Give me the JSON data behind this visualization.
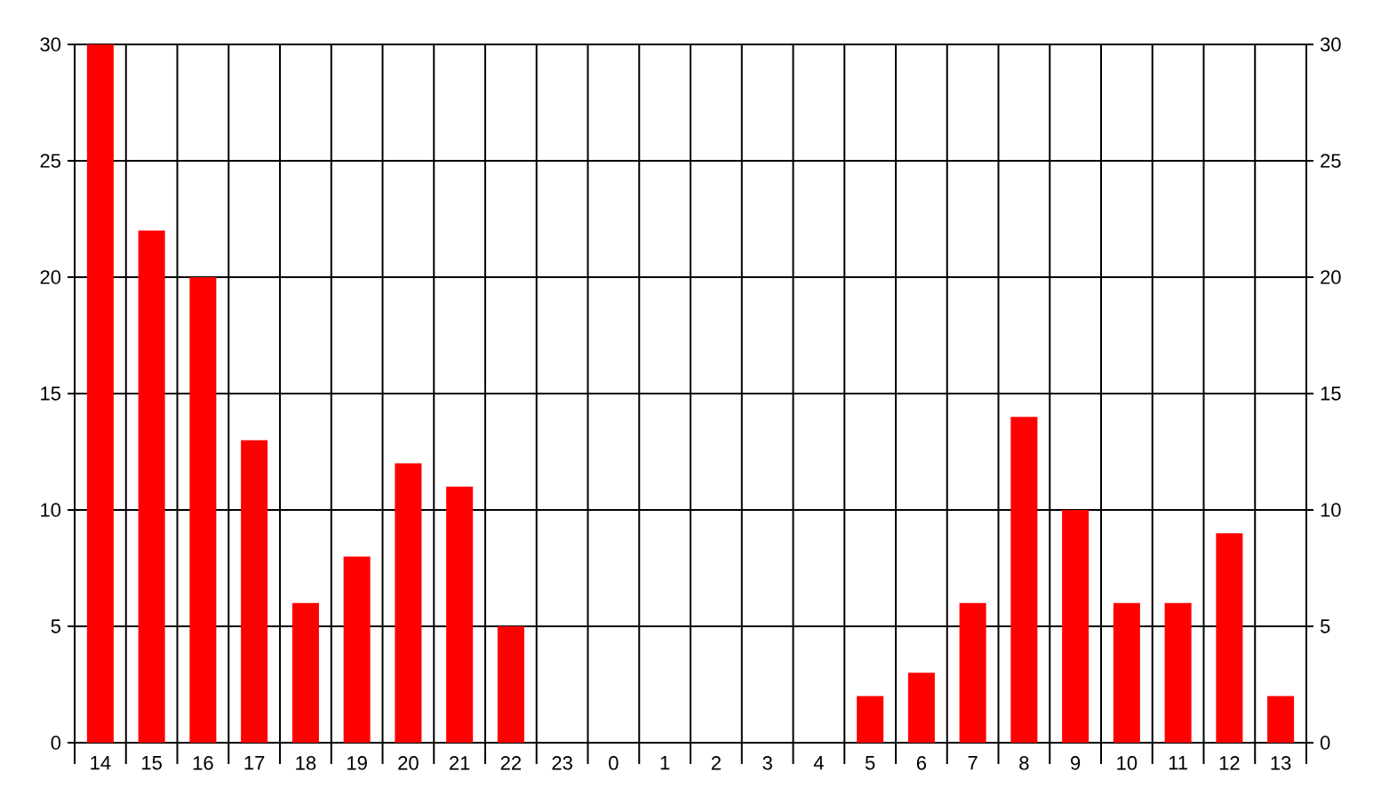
{
  "chart_data": {
    "type": "bar",
    "categories": [
      "14",
      "15",
      "16",
      "17",
      "18",
      "19",
      "20",
      "21",
      "22",
      "23",
      "0",
      "1",
      "2",
      "3",
      "4",
      "5",
      "6",
      "7",
      "8",
      "9",
      "10",
      "11",
      "12",
      "13"
    ],
    "values": [
      30,
      22,
      20,
      13,
      6,
      8,
      12,
      11,
      5,
      0,
      0,
      0,
      0,
      0,
      0,
      2,
      3,
      6,
      14,
      10,
      6,
      6,
      9,
      2
    ],
    "color": "#ff0000",
    "ylim": [
      0,
      30
    ],
    "yticks": [
      0,
      5,
      10,
      15,
      20,
      25,
      30
    ],
    "y2lim": [
      0,
      30
    ],
    "y2ticks": [
      0,
      5,
      10,
      15,
      20,
      25,
      30
    ],
    "grid": true
  }
}
